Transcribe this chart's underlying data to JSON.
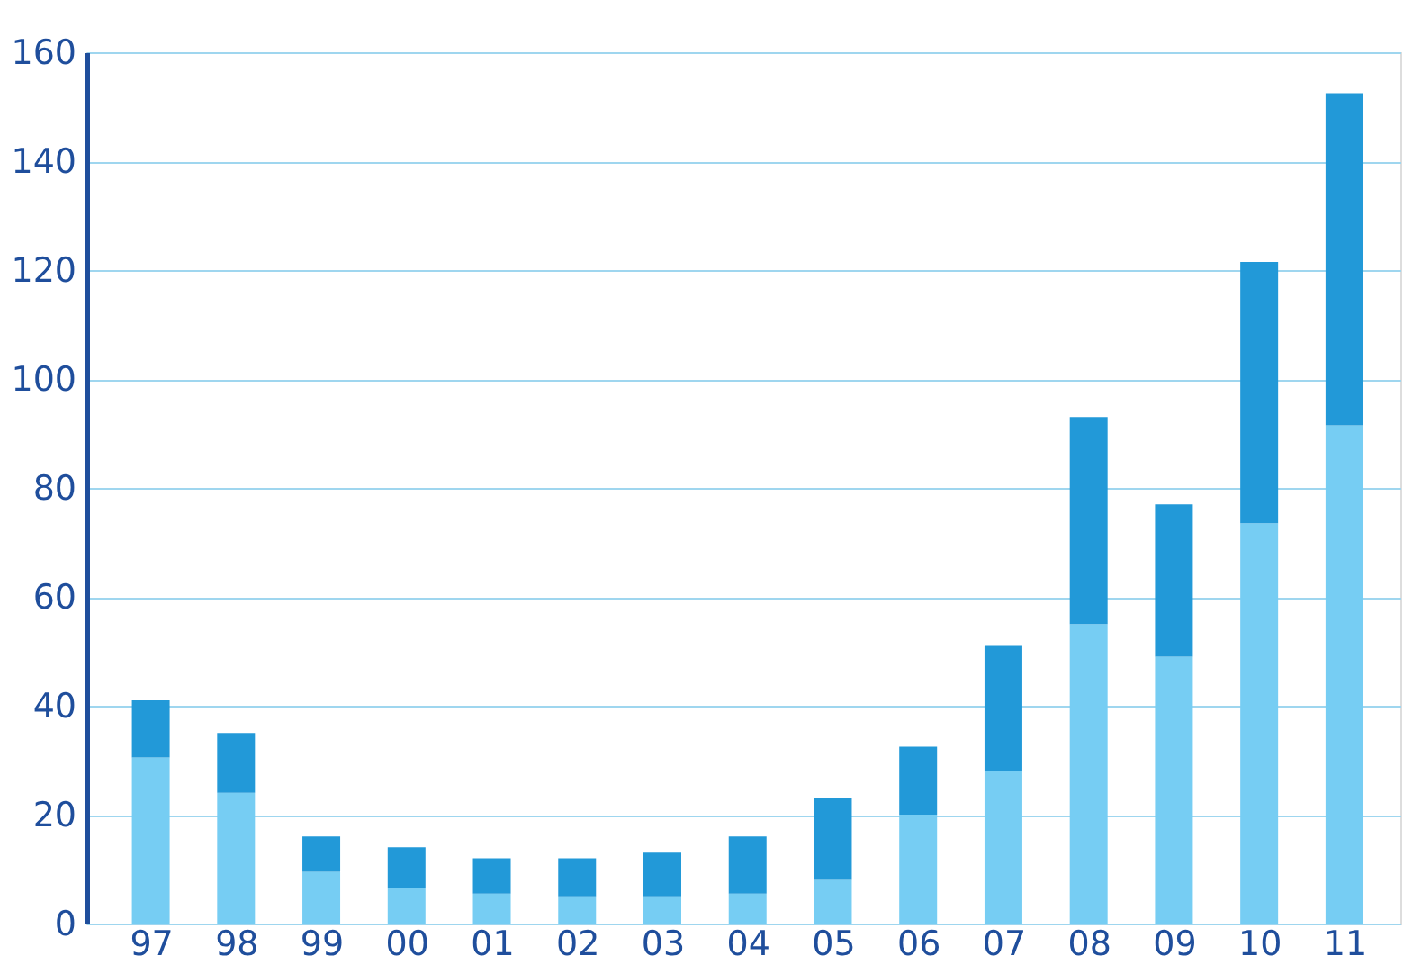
{
  "chart_data": {
    "type": "bar",
    "stacked": true,
    "categories": [
      "97",
      "98",
      "99",
      "00",
      "01",
      "02",
      "03",
      "04",
      "05",
      "06",
      "07",
      "08",
      "09",
      "10",
      "11"
    ],
    "series": [
      {
        "color": "#76cdf3",
        "values": [
          30.5,
          24,
          9.5,
          6.5,
          5.5,
          5,
          5,
          5.5,
          8,
          20,
          28,
          55,
          49,
          73.5,
          91.5
        ]
      },
      {
        "color": "#2299d8",
        "values": [
          10.5,
          11,
          6.5,
          7.5,
          6.5,
          7,
          8,
          10.5,
          15,
          12.5,
          23,
          38,
          28,
          48,
          61
        ]
      }
    ],
    "ylim": [
      0,
      160
    ],
    "yticks": [
      0,
      20,
      40,
      60,
      80,
      100,
      120,
      140,
      160
    ],
    "grid": "y",
    "legend": false
  }
}
